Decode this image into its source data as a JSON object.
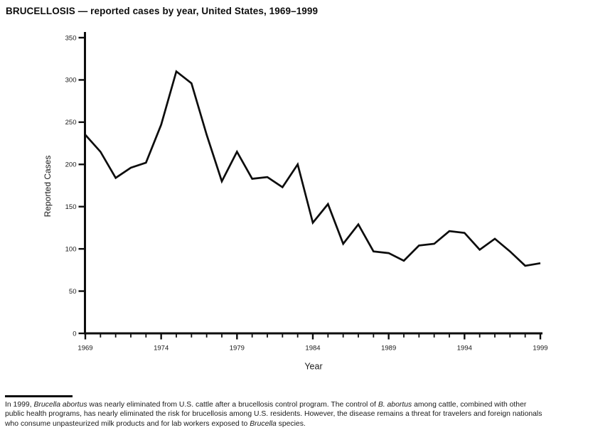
{
  "title": "BRUCELLOSIS — reported cases by year, United States, 1969–1999",
  "chart_data": {
    "type": "line",
    "title": "BRUCELLOSIS — reported cases by year, United States, 1969–1999",
    "xlabel": "Year",
    "ylabel": "Reported Cases",
    "x": [
      1969,
      1970,
      1971,
      1972,
      1973,
      1974,
      1975,
      1976,
      1977,
      1978,
      1979,
      1980,
      1981,
      1982,
      1983,
      1984,
      1985,
      1986,
      1987,
      1988,
      1989,
      1990,
      1991,
      1992,
      1993,
      1994,
      1995,
      1996,
      1997,
      1998,
      1999
    ],
    "values": [
      235,
      215,
      184,
      196,
      202,
      247,
      310,
      296,
      235,
      180,
      215,
      183,
      185,
      173,
      200,
      131,
      153,
      106,
      129,
      97,
      95,
      86,
      104,
      106,
      121,
      119,
      99,
      112,
      97,
      80,
      83
    ],
    "ylim": [
      0,
      350
    ],
    "yticks": [
      0,
      50,
      100,
      150,
      200,
      250,
      300,
      350
    ],
    "xticks": [
      1969,
      1974,
      1979,
      1984,
      1989,
      1994,
      1999
    ],
    "grid": false,
    "legend": null,
    "line_color": "#0d0d0d",
    "axis_color": "#0d0d0d"
  },
  "footnote": {
    "lines": [
      [
        {
          "t": "In 1999, ",
          "i": false
        },
        {
          "t": "Brucella abortus",
          "i": true
        },
        {
          "t": " was nearly eliminated from U.S. cattle after a brucellosis control program. The control of ",
          "i": false
        },
        {
          "t": "B. abortus",
          "i": true
        },
        {
          "t": " among cattle, combined with other",
          "i": false
        }
      ],
      [
        {
          "t": "public health programs, has nearly eliminated the risk for brucellosis among U.S. residents. However, the disease remains a threat for travelers and foreign nationals",
          "i": false
        }
      ],
      [
        {
          "t": "who consume unpasteurized milk products and for lab workers exposed to ",
          "i": false
        },
        {
          "t": "Brucella",
          "i": true
        },
        {
          "t": " species.",
          "i": false
        }
      ]
    ]
  }
}
